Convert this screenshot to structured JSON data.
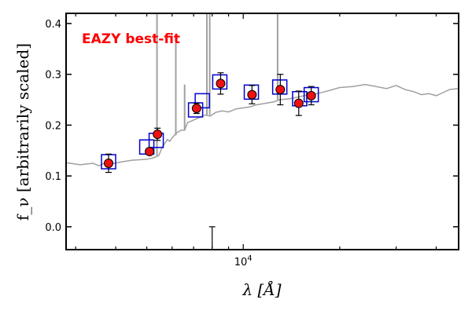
{
  "chart_data": {
    "type": "scatter",
    "title": "",
    "annotation": "EAZY best-fit",
    "xlabel": "λ [Å]",
    "ylabel": "f_ν [arbitrarily scaled]",
    "x_scale": "log",
    "xlim": [
      2800,
      47000
    ],
    "ylim": [
      -0.045,
      0.42
    ],
    "x_ticks": [
      {
        "value": 10000,
        "label": "10^4"
      }
    ],
    "y_ticks": [
      {
        "value": 0.0,
        "label": "0.0"
      },
      {
        "value": 0.1,
        "label": "0.1"
      },
      {
        "value": 0.2,
        "label": "0.2"
      },
      {
        "value": 0.3,
        "label": "0.3"
      },
      {
        "value": 0.4,
        "label": "0.4"
      }
    ],
    "grid": false,
    "colors": {
      "template": "#a0a0a0",
      "model_photometry": "#0000cc",
      "observed": "#ee1111",
      "annotation": "#ff0000"
    },
    "template_sed": {
      "x": [
        2800,
        3100,
        3400,
        3550,
        3700,
        3900,
        4200,
        4500,
        4800,
        5000,
        5200,
        5350,
        5450,
        5500,
        5600,
        5700,
        5800,
        5900,
        6000,
        6200,
        6400,
        6563,
        6700,
        7000,
        7300,
        7600,
        7900,
        8200,
        8600,
        9000,
        9500,
        10000,
        10500,
        11000,
        11500,
        12000,
        12500,
        13000,
        14000,
        15000,
        16000,
        17000,
        18000,
        19000,
        20000,
        22000,
        24000,
        26000,
        28000,
        30000,
        32000,
        34000,
        36000,
        38000,
        40000,
        42000,
        44000,
        47000
      ],
      "y": [
        0.126,
        0.122,
        0.125,
        0.12,
        0.126,
        0.124,
        0.128,
        0.131,
        0.132,
        0.133,
        0.135,
        0.138,
        0.14,
        0.146,
        0.158,
        0.165,
        0.172,
        0.168,
        0.175,
        0.185,
        0.19,
        0.19,
        0.205,
        0.21,
        0.215,
        0.22,
        0.218,
        0.225,
        0.228,
        0.226,
        0.232,
        0.234,
        0.236,
        0.24,
        0.242,
        0.244,
        0.246,
        0.25,
        0.252,
        0.256,
        0.26,
        0.262,
        0.266,
        0.27,
        0.274,
        0.276,
        0.28,
        0.276,
        0.272,
        0.278,
        0.27,
        0.266,
        0.26,
        0.262,
        0.258,
        0.264,
        0.27,
        0.272
      ]
    },
    "emission_lines": [
      {
        "x": 5380,
        "y_base": 0.14,
        "y_peak": 0.6
      },
      {
        "x": 6160,
        "y_base": 0.18,
        "y_peak": 0.38
      },
      {
        "x": 6563,
        "y_base": 0.19,
        "y_peak": 0.28
      },
      {
        "x": 7700,
        "y_base": 0.22,
        "y_peak": 0.6
      },
      {
        "x": 7860,
        "y_base": 0.22,
        "y_peak": 0.6
      },
      {
        "x": 12800,
        "y_base": 0.25,
        "y_peak": 0.6
      }
    ],
    "model_photometry": [
      {
        "x": 3800,
        "y": 0.128
      },
      {
        "x": 5000,
        "y": 0.157
      },
      {
        "x": 5350,
        "y": 0.17
      },
      {
        "x": 7100,
        "y": 0.23
      },
      {
        "x": 7450,
        "y": 0.248
      },
      {
        "x": 8450,
        "y": 0.285
      },
      {
        "x": 10600,
        "y": 0.265
      },
      {
        "x": 13000,
        "y": 0.275
      },
      {
        "x": 15000,
        "y": 0.252
      },
      {
        "x": 16300,
        "y": 0.26
      }
    ],
    "observed_photometry": [
      {
        "x": 3800,
        "y": 0.125,
        "err": 0.018
      },
      {
        "x": 5100,
        "y": 0.148,
        "err": 0.006
      },
      {
        "x": 5400,
        "y": 0.182,
        "err": 0.012
      },
      {
        "x": 7150,
        "y": 0.233,
        "err": 0.01
      },
      {
        "x": 8500,
        "y": 0.282,
        "err": 0.021
      },
      {
        "x": 10650,
        "y": 0.26,
        "err": 0.018
      },
      {
        "x": 13050,
        "y": 0.27,
        "err": 0.03
      },
      {
        "x": 14900,
        "y": 0.243,
        "err": 0.024
      },
      {
        "x": 16300,
        "y": 0.258,
        "err": 0.018
      }
    ],
    "limit_points": [
      {
        "x": 8000,
        "y_low": -0.042,
        "y_high": 0.0
      }
    ]
  }
}
